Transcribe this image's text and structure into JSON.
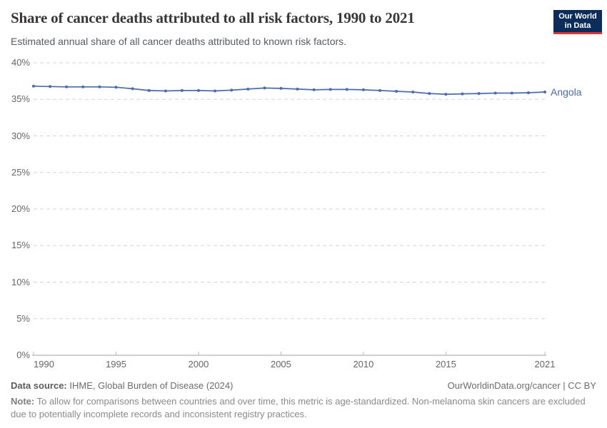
{
  "header": {
    "title": "Share of cancer deaths attributed to all risk factors, 1990 to 2021",
    "subtitle": "Estimated annual share of all cancer deaths attributed to known risk factors.",
    "logo_line1": "Our World",
    "logo_line2": "in Data",
    "logo_bg_color": "#0c2d5a",
    "logo_accent_color": "#d93532"
  },
  "chart_data": {
    "type": "line",
    "title": "Share of cancer deaths attributed to all risk factors, 1990 to 2021",
    "x": [
      1990,
      1991,
      1992,
      1993,
      1994,
      1995,
      1996,
      1997,
      1998,
      1999,
      2000,
      2001,
      2002,
      2003,
      2004,
      2005,
      2006,
      2007,
      2008,
      2009,
      2010,
      2011,
      2012,
      2013,
      2014,
      2015,
      2016,
      2017,
      2018,
      2019,
      2020,
      2021
    ],
    "series": [
      {
        "name": "Angola",
        "color": "#4c6bab",
        "values": [
          36.8,
          36.75,
          36.7,
          36.7,
          36.7,
          36.65,
          36.45,
          36.2,
          36.15,
          36.2,
          36.2,
          36.15,
          36.25,
          36.4,
          36.55,
          36.5,
          36.4,
          36.3,
          36.35,
          36.35,
          36.3,
          36.2,
          36.1,
          36.0,
          35.8,
          35.7,
          35.75,
          35.8,
          35.85,
          35.85,
          35.9,
          36.0
        ]
      }
    ],
    "xticks": [
      1990,
      1995,
      2000,
      2005,
      2010,
      2015,
      2021
    ],
    "yticks": [
      0,
      5,
      10,
      15,
      20,
      25,
      30,
      35,
      40
    ],
    "ylim": [
      0,
      40
    ],
    "y_unit": "%",
    "xlabel": "",
    "ylabel": "",
    "grid": "horizontal-dashed",
    "legend_position": "end-of-line",
    "grid_color": "#d5d5d5",
    "axis_color": "#a0a0a0",
    "tick_color": "#bbbbbb",
    "axis_text_color": "#666666"
  },
  "footer": {
    "source_label": "Data source:",
    "source_text": " IHME, Global Burden of Disease (2024)",
    "license_text": "OurWorldinData.org/cancer | CC BY",
    "note_label": "Note:",
    "note_text": " To allow for comparisons between countries and over time, this metric is age-standardized. Non-melanoma skin cancers are excluded due to potentially incomplete records and inconsistent registry practices."
  }
}
